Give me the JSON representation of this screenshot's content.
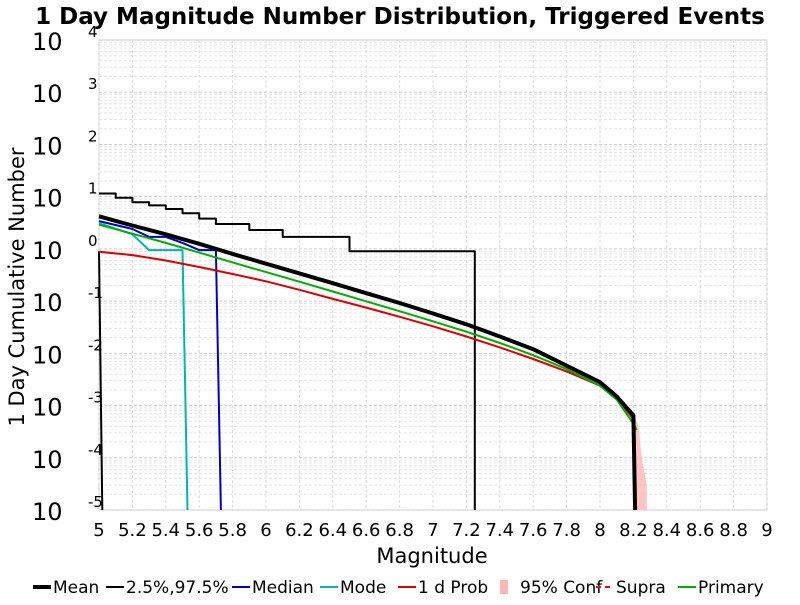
{
  "chart_data": {
    "type": "line",
    "title": "1 Day Magnitude Number Distribution, Triggered Events",
    "xlabel": "Magnitude",
    "ylabel": "1 Day Cumulative Number",
    "xlim": [
      5,
      9
    ],
    "ylim": [
      1e-05,
      10000
    ],
    "y_scale": "log",
    "grid": true,
    "legend_placement": "bottom",
    "x_ticks": [
      {
        "value": 5,
        "label": "5"
      },
      {
        "value": 5.2,
        "label": "5.2"
      },
      {
        "value": 5.4,
        "label": "5.4"
      },
      {
        "value": 5.6,
        "label": "5.6"
      },
      {
        "value": 5.8,
        "label": "5.8"
      },
      {
        "value": 6,
        "label": "6"
      },
      {
        "value": 6.2,
        "label": "6.2"
      },
      {
        "value": 6.4,
        "label": "6.4"
      },
      {
        "value": 6.6,
        "label": "6.6"
      },
      {
        "value": 6.8,
        "label": "6.8"
      },
      {
        "value": 7,
        "label": "7"
      },
      {
        "value": 7.2,
        "label": "7.2"
      },
      {
        "value": 7.4,
        "label": "7.4"
      },
      {
        "value": 7.6,
        "label": "7.6"
      },
      {
        "value": 7.8,
        "label": "7.8"
      },
      {
        "value": 8,
        "label": "8"
      },
      {
        "value": 8.2,
        "label": "8.2"
      },
      {
        "value": 8.4,
        "label": "8.4"
      },
      {
        "value": 8.6,
        "label": "8.6"
      },
      {
        "value": 8.8,
        "label": "8.8"
      },
      {
        "value": 9,
        "label": "9"
      }
    ],
    "y_ticks": [
      {
        "exp": 4,
        "base": "10",
        "sup": "4"
      },
      {
        "exp": 3,
        "base": "10",
        "sup": "3"
      },
      {
        "exp": 2,
        "base": "10",
        "sup": "2"
      },
      {
        "exp": 1,
        "base": "10",
        "sup": "1"
      },
      {
        "exp": 0,
        "base": "10",
        "sup": "0"
      },
      {
        "exp": -1,
        "base": "10",
        "sup": "-1"
      },
      {
        "exp": -2,
        "base": "10",
        "sup": "-2"
      },
      {
        "exp": -3,
        "base": "10",
        "sup": "-3"
      },
      {
        "exp": -4,
        "base": "10",
        "sup": "-4"
      },
      {
        "exp": -5,
        "base": "10",
        "sup": "-5"
      }
    ],
    "series": [
      {
        "name": "Mean",
        "color": "#000000",
        "stroke_weight": "bold",
        "points": [
          [
            5.0,
            4.2
          ],
          [
            5.2,
            2.8
          ],
          [
            5.4,
            1.9
          ],
          [
            5.6,
            1.25
          ],
          [
            5.8,
            0.8
          ],
          [
            6.0,
            0.52
          ],
          [
            6.2,
            0.34
          ],
          [
            6.4,
            0.22
          ],
          [
            6.6,
            0.142
          ],
          [
            6.8,
            0.092
          ],
          [
            7.0,
            0.058
          ],
          [
            7.2,
            0.036
          ],
          [
            7.4,
            0.021
          ],
          [
            7.6,
            0.012
          ],
          [
            7.8,
            0.0058
          ],
          [
            8.0,
            0.0028
          ],
          [
            8.1,
            0.0015
          ],
          [
            8.2,
            0.00065
          ],
          [
            8.21,
            1e-05
          ]
        ]
      },
      {
        "name": "2.5%,97.5%",
        "color": "#000000",
        "stroke_weight": "thin",
        "line_style": "step",
        "points": [
          [
            5.0,
            11.5
          ],
          [
            5.1,
            9.5
          ],
          [
            5.2,
            7.8
          ],
          [
            5.3,
            6.8
          ],
          [
            5.4,
            5.8
          ],
          [
            5.5,
            4.8
          ],
          [
            5.6,
            3.8
          ],
          [
            5.7,
            3.0
          ],
          [
            5.8,
            3.0
          ],
          [
            5.9,
            2.3
          ],
          [
            6.0,
            2.3
          ],
          [
            6.1,
            1.7
          ],
          [
            6.2,
            1.7
          ],
          [
            6.3,
            1.7
          ],
          [
            6.4,
            1.7
          ],
          [
            6.5,
            0.9
          ],
          [
            7.2,
            0.9
          ],
          [
            7.25,
            1e-05
          ]
        ],
        "lower_points": [
          [
            5.0,
            0.9
          ],
          [
            5.02,
            1e-05
          ]
        ]
      },
      {
        "name": "Median",
        "color": "#0000cc",
        "stroke_weight": "normal",
        "points": [
          [
            5.0,
            3.4
          ],
          [
            5.2,
            2.4
          ],
          [
            5.3,
            1.7
          ],
          [
            5.4,
            1.7
          ],
          [
            5.5,
            1.3
          ],
          [
            5.6,
            0.95
          ],
          [
            5.7,
            0.95
          ],
          [
            5.73,
            1e-05
          ]
        ]
      },
      {
        "name": "Mode",
        "color": "#00b5b5",
        "stroke_weight": "normal",
        "points": [
          [
            5.0,
            3.1
          ],
          [
            5.2,
            1.9
          ],
          [
            5.3,
            0.95
          ],
          [
            5.4,
            0.95
          ],
          [
            5.5,
            0.95
          ],
          [
            5.53,
            1e-05
          ]
        ]
      },
      {
        "name": "1 d Prob",
        "color": "#e00000",
        "stroke_weight": "normal",
        "points": [
          [
            5.0,
            0.88
          ],
          [
            5.2,
            0.76
          ],
          [
            5.4,
            0.6
          ],
          [
            5.6,
            0.45
          ],
          [
            5.8,
            0.33
          ],
          [
            6.0,
            0.24
          ],
          [
            6.2,
            0.165
          ],
          [
            6.4,
            0.11
          ],
          [
            6.6,
            0.075
          ],
          [
            6.8,
            0.05
          ],
          [
            7.0,
            0.033
          ],
          [
            7.2,
            0.021
          ],
          [
            7.4,
            0.013
          ],
          [
            7.6,
            0.0078
          ],
          [
            7.8,
            0.0045
          ],
          [
            8.0,
            0.0024
          ],
          [
            8.1,
            0.0014
          ],
          [
            8.2,
            0.00055
          ]
        ]
      },
      {
        "name": "95% Conf",
        "color": "#ffb6b6",
        "stroke_weight": "band",
        "points": [
          [
            8.2,
            0.00075
          ],
          [
            8.23,
            0.0004
          ],
          [
            8.25,
            0.0001
          ],
          [
            8.28,
            3e-05
          ],
          [
            8.28,
            1e-05
          ],
          [
            8.2,
            1e-05
          ]
        ]
      },
      {
        "name": "Supra",
        "color": "#ff0000",
        "stroke_weight": "dashed",
        "points": []
      },
      {
        "name": "Primary",
        "color": "#00b000",
        "stroke_weight": "normal",
        "points": [
          [
            5.0,
            2.9
          ],
          [
            5.2,
            1.95
          ],
          [
            5.4,
            1.3
          ],
          [
            5.6,
            0.85
          ],
          [
            5.8,
            0.55
          ],
          [
            6.0,
            0.36
          ],
          [
            6.2,
            0.235
          ],
          [
            6.4,
            0.153
          ],
          [
            6.6,
            0.099
          ],
          [
            6.8,
            0.064
          ],
          [
            7.0,
            0.041
          ],
          [
            7.2,
            0.026
          ],
          [
            7.4,
            0.0158
          ],
          [
            7.6,
            0.0092
          ],
          [
            7.8,
            0.005
          ],
          [
            8.0,
            0.0024
          ],
          [
            8.1,
            0.0013
          ],
          [
            8.2,
            0.00045
          ],
          [
            8.22,
            0.00034
          ]
        ]
      }
    ]
  }
}
